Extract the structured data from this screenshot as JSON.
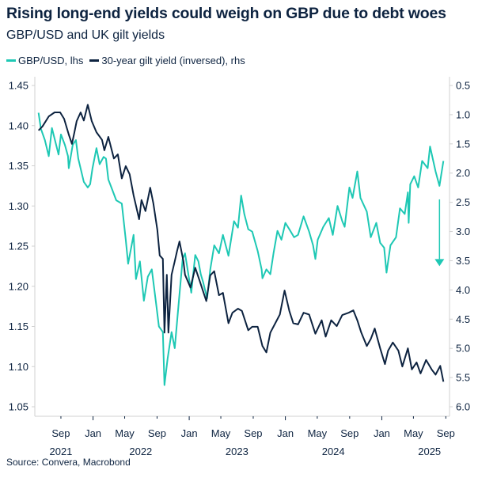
{
  "title": "Rising long-end yields could weigh on GBP due to debt woes",
  "subtitle": "GBP/USD and UK gilt yields",
  "source": "Source: Convera, Macrobond",
  "colors": {
    "gbpusd": "#1ec8b4",
    "gilt": "#0d2340",
    "axis": "#d0d0d0",
    "text": "#0d2340"
  },
  "chart_data": {
    "type": "line",
    "title": "Rising long-end yields could weigh on GBP due to debt woes",
    "subtitle": "GBP/USD and UK gilt yields",
    "legend_position": "top-left",
    "grid": false,
    "xlim": [
      "2021-05-25",
      "2025-09-15"
    ],
    "x_ticks": [
      {
        "date": "2021-09-01",
        "label": "Sep"
      },
      {
        "date": "2022-01-01",
        "label": "Jan"
      },
      {
        "date": "2022-05-01",
        "label": "May"
      },
      {
        "date": "2022-09-01",
        "label": "Sep"
      },
      {
        "date": "2023-01-01",
        "label": "Jan"
      },
      {
        "date": "2023-05-01",
        "label": "May"
      },
      {
        "date": "2023-09-01",
        "label": "Sep"
      },
      {
        "date": "2024-01-01",
        "label": "Jan"
      },
      {
        "date": "2024-05-01",
        "label": "May"
      },
      {
        "date": "2024-09-01",
        "label": "Sep"
      },
      {
        "date": "2025-01-01",
        "label": "Jan"
      },
      {
        "date": "2025-05-01",
        "label": "May"
      },
      {
        "date": "2025-09-01",
        "label": "Sep"
      }
    ],
    "x_year_labels": [
      {
        "date": "2021-09-01",
        "label": "2021"
      },
      {
        "date": "2022-07-01",
        "label": "2022"
      },
      {
        "date": "2023-07-01",
        "label": "2023"
      },
      {
        "date": "2024-07-01",
        "label": "2024"
      },
      {
        "date": "2025-07-01",
        "label": "2025"
      }
    ],
    "y_left": {
      "range": [
        1.05,
        1.45
      ],
      "ticks": [
        "1.05",
        "1.10",
        "1.15",
        "1.20",
        "1.25",
        "1.30",
        "1.35",
        "1.40",
        "1.45"
      ]
    },
    "y_right": {
      "range": [
        0.5,
        6.0
      ],
      "inverted": true,
      "ticks": [
        "0.5",
        "1.0",
        "1.5",
        "2.0",
        "2.5",
        "3.0",
        "3.5",
        "4.0",
        "4.5",
        "5.0",
        "5.5",
        "6.0"
      ]
    },
    "series": [
      {
        "name": "GBP/USD, lhs",
        "axis": "left",
        "points": [
          [
            "2021-06-08",
            1.416
          ],
          [
            "2021-06-17",
            1.396
          ],
          [
            "2021-07-02",
            1.382
          ],
          [
            "2021-07-17",
            1.362
          ],
          [
            "2021-07-29",
            1.397
          ],
          [
            "2021-08-23",
            1.364
          ],
          [
            "2021-09-01",
            1.389
          ],
          [
            "2021-09-16",
            1.376
          ],
          [
            "2021-09-28",
            1.362
          ],
          [
            "2021-10-01",
            1.347
          ],
          [
            "2021-10-16",
            1.376
          ],
          [
            "2021-10-28",
            1.382
          ],
          [
            "2021-11-06",
            1.359
          ],
          [
            "2021-11-27",
            1.33
          ],
          [
            "2021-12-12",
            1.323
          ],
          [
            "2021-12-21",
            1.327
          ],
          [
            "2021-12-30",
            1.347
          ],
          [
            "2022-01-14",
            1.372
          ],
          [
            "2022-01-26",
            1.352
          ],
          [
            "2022-02-10",
            1.361
          ],
          [
            "2022-02-19",
            1.359
          ],
          [
            "2022-02-28",
            1.333
          ],
          [
            "2022-03-15",
            1.32
          ],
          [
            "2022-03-30",
            1.307
          ],
          [
            "2022-04-20",
            1.303
          ],
          [
            "2022-05-05",
            1.258
          ],
          [
            "2022-05-14",
            1.228
          ],
          [
            "2022-06-04",
            1.264
          ],
          [
            "2022-06-13",
            1.209
          ],
          [
            "2022-06-28",
            1.231
          ],
          [
            "2022-07-13",
            1.182
          ],
          [
            "2022-07-28",
            1.212
          ],
          [
            "2022-08-12",
            1.221
          ],
          [
            "2022-08-27",
            1.182
          ],
          [
            "2022-09-08",
            1.15
          ],
          [
            "2022-09-23",
            1.143
          ],
          [
            "2022-09-29",
            1.077
          ],
          [
            "2022-10-11",
            1.11
          ],
          [
            "2022-10-26",
            1.143
          ],
          [
            "2022-11-07",
            1.123
          ],
          [
            "2022-11-22",
            1.179
          ],
          [
            "2022-12-07",
            1.234
          ],
          [
            "2022-12-16",
            1.241
          ],
          [
            "2023-01-09",
            1.192
          ],
          [
            "2023-01-24",
            1.239
          ],
          [
            "2023-02-05",
            1.231
          ],
          [
            "2023-02-14",
            1.215
          ],
          [
            "2023-02-23",
            1.205
          ],
          [
            "2023-03-10",
            1.185
          ],
          [
            "2023-03-22",
            1.221
          ],
          [
            "2023-04-06",
            1.251
          ],
          [
            "2023-04-24",
            1.241
          ],
          [
            "2023-05-09",
            1.264
          ],
          [
            "2023-05-30",
            1.238
          ],
          [
            "2023-06-20",
            1.281
          ],
          [
            "2023-07-05",
            1.273
          ],
          [
            "2023-07-17",
            1.313
          ],
          [
            "2023-07-29",
            1.29
          ],
          [
            "2023-08-13",
            1.271
          ],
          [
            "2023-08-28",
            1.268
          ],
          [
            "2023-09-18",
            1.244
          ],
          [
            "2023-10-03",
            1.221
          ],
          [
            "2023-10-06",
            1.21
          ],
          [
            "2023-10-21",
            1.221
          ],
          [
            "2023-11-05",
            1.215
          ],
          [
            "2023-11-17",
            1.241
          ],
          [
            "2023-12-02",
            1.269
          ],
          [
            "2023-12-17",
            1.258
          ],
          [
            "2024-01-01",
            1.279
          ],
          [
            "2024-01-16",
            1.271
          ],
          [
            "2024-02-03",
            1.261
          ],
          [
            "2024-02-18",
            1.264
          ],
          [
            "2024-03-10",
            1.287
          ],
          [
            "2024-03-31",
            1.268
          ],
          [
            "2024-04-15",
            1.251
          ],
          [
            "2024-04-24",
            1.234
          ],
          [
            "2024-05-03",
            1.258
          ],
          [
            "2024-05-24",
            1.274
          ],
          [
            "2024-06-14",
            1.285
          ],
          [
            "2024-06-29",
            1.264
          ],
          [
            "2024-07-17",
            1.3
          ],
          [
            "2024-08-04",
            1.281
          ],
          [
            "2024-08-13",
            1.274
          ],
          [
            "2024-08-31",
            1.323
          ],
          [
            "2024-09-12",
            1.31
          ],
          [
            "2024-09-30",
            1.343
          ],
          [
            "2024-10-12",
            1.31
          ],
          [
            "2024-11-05",
            1.293
          ],
          [
            "2024-11-20",
            1.261
          ],
          [
            "2024-12-11",
            1.279
          ],
          [
            "2024-12-26",
            1.254
          ],
          [
            "2025-01-10",
            1.248
          ],
          [
            "2025-01-19",
            1.217
          ],
          [
            "2025-02-03",
            1.251
          ],
          [
            "2025-02-24",
            1.261
          ],
          [
            "2025-03-11",
            1.297
          ],
          [
            "2025-03-29",
            1.29
          ],
          [
            "2025-04-10",
            1.317
          ],
          [
            "2025-04-13",
            1.279
          ],
          [
            "2025-04-19",
            1.327
          ],
          [
            "2025-05-04",
            1.337
          ],
          [
            "2025-05-19",
            1.323
          ],
          [
            "2025-06-03",
            1.356
          ],
          [
            "2025-06-24",
            1.347
          ],
          [
            "2025-07-03",
            1.374
          ],
          [
            "2025-07-24",
            1.343
          ],
          [
            "2025-08-08",
            1.325
          ],
          [
            "2025-08-23",
            1.356
          ]
        ]
      },
      {
        "name": "30-year gilt yield (inversed), rhs",
        "axis": "right",
        "points": [
          [
            "2021-06-08",
            1.27
          ],
          [
            "2021-06-23",
            1.2
          ],
          [
            "2021-07-17",
            1.03
          ],
          [
            "2021-08-08",
            0.96
          ],
          [
            "2021-08-29",
            0.96
          ],
          [
            "2021-09-13",
            1.07
          ],
          [
            "2021-10-01",
            1.34
          ],
          [
            "2021-10-13",
            1.5
          ],
          [
            "2021-10-22",
            1.31
          ],
          [
            "2021-10-31",
            1.11
          ],
          [
            "2021-11-15",
            0.96
          ],
          [
            "2021-11-27",
            1.1
          ],
          [
            "2021-12-12",
            0.83
          ],
          [
            "2021-12-27",
            1.11
          ],
          [
            "2022-01-14",
            1.3
          ],
          [
            "2022-02-04",
            1.43
          ],
          [
            "2022-02-13",
            1.61
          ],
          [
            "2022-02-28",
            1.38
          ],
          [
            "2022-03-21",
            1.75
          ],
          [
            "2022-04-05",
            1.68
          ],
          [
            "2022-04-20",
            2.09
          ],
          [
            "2022-05-05",
            1.88
          ],
          [
            "2022-05-20",
            2.02
          ],
          [
            "2022-06-04",
            2.38
          ],
          [
            "2022-06-25",
            2.79
          ],
          [
            "2022-07-04",
            2.46
          ],
          [
            "2022-07-19",
            2.65
          ],
          [
            "2022-08-06",
            2.25
          ],
          [
            "2022-08-18",
            2.52
          ],
          [
            "2022-09-02",
            2.97
          ],
          [
            "2022-09-11",
            3.41
          ],
          [
            "2022-09-23",
            3.47
          ],
          [
            "2022-09-29",
            4.73
          ],
          [
            "2022-10-08",
            3.74
          ],
          [
            "2022-10-14",
            4.73
          ],
          [
            "2022-10-26",
            3.74
          ],
          [
            "2022-11-07",
            3.51
          ],
          [
            "2022-11-16",
            3.33
          ],
          [
            "2022-11-25",
            3.17
          ],
          [
            "2022-12-10",
            3.51
          ],
          [
            "2022-12-16",
            3.74
          ],
          [
            "2023-01-06",
            3.96
          ],
          [
            "2023-01-24",
            3.62
          ],
          [
            "2023-02-08",
            3.82
          ],
          [
            "2023-03-07",
            4.19
          ],
          [
            "2023-03-22",
            3.75
          ],
          [
            "2023-04-06",
            3.68
          ],
          [
            "2023-04-24",
            4.09
          ],
          [
            "2023-05-09",
            4.05
          ],
          [
            "2023-05-30",
            4.57
          ],
          [
            "2023-06-14",
            4.39
          ],
          [
            "2023-07-05",
            4.32
          ],
          [
            "2023-07-20",
            4.36
          ],
          [
            "2023-08-13",
            4.69
          ],
          [
            "2023-08-28",
            4.63
          ],
          [
            "2023-09-18",
            4.63
          ],
          [
            "2023-10-06",
            4.96
          ],
          [
            "2023-10-21",
            5.07
          ],
          [
            "2023-11-05",
            4.73
          ],
          [
            "2023-11-26",
            4.55
          ],
          [
            "2023-12-11",
            4.42
          ],
          [
            "2023-12-29",
            4.01
          ],
          [
            "2024-01-16",
            4.36
          ],
          [
            "2024-01-31",
            4.57
          ],
          [
            "2024-02-18",
            4.59
          ],
          [
            "2024-03-10",
            4.39
          ],
          [
            "2024-03-31",
            4.42
          ],
          [
            "2024-04-24",
            4.75
          ],
          [
            "2024-05-18",
            4.52
          ],
          [
            "2024-06-02",
            4.8
          ],
          [
            "2024-06-23",
            4.52
          ],
          [
            "2024-07-14",
            4.62
          ],
          [
            "2024-08-04",
            4.43
          ],
          [
            "2024-08-28",
            4.39
          ],
          [
            "2024-09-15",
            4.35
          ],
          [
            "2024-09-30",
            4.52
          ],
          [
            "2024-10-15",
            4.73
          ],
          [
            "2024-11-05",
            4.96
          ],
          [
            "2024-11-20",
            4.84
          ],
          [
            "2024-12-05",
            4.66
          ],
          [
            "2024-12-26",
            5.0
          ],
          [
            "2025-01-13",
            5.27
          ],
          [
            "2025-01-25",
            5.04
          ],
          [
            "2025-02-12",
            4.9
          ],
          [
            "2025-03-05",
            5.04
          ],
          [
            "2025-03-20",
            5.31
          ],
          [
            "2025-04-10",
            5.0
          ],
          [
            "2025-04-25",
            5.36
          ],
          [
            "2025-05-13",
            5.24
          ],
          [
            "2025-05-28",
            5.43
          ],
          [
            "2025-06-18",
            5.2
          ],
          [
            "2025-07-09",
            5.36
          ],
          [
            "2025-07-24",
            5.45
          ],
          [
            "2025-08-11",
            5.3
          ],
          [
            "2025-08-23",
            5.57
          ]
        ]
      }
    ],
    "annotations": [
      {
        "type": "arrow",
        "direction": "down",
        "axis": "right",
        "date": "2025-08-08",
        "from": 2.45,
        "to": 3.58
      }
    ]
  }
}
